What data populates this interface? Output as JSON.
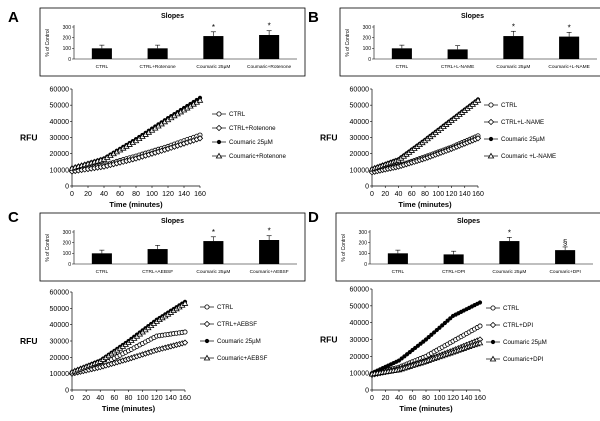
{
  "panels": [
    {
      "letter": "A",
      "bar_title": "Slopes",
      "bar_ylabel": "% of Control",
      "bar_yticks": [
        "0",
        "100",
        "200",
        "300"
      ],
      "bar_categories": [
        "CTRL",
        "CTRL+Rotenone",
        "Coumaric 25µM",
        "Coumaric+Rotenone"
      ],
      "bar_markers": [
        "",
        "",
        "*",
        "*"
      ],
      "line_ylabel": "RFU",
      "line_xlabel": "Time (minutes)",
      "line_yticks": [
        "0",
        "10000",
        "20000",
        "30000",
        "40000",
        "50000",
        "60000"
      ],
      "line_xticks": [
        "0",
        "20",
        "40",
        "60",
        "80",
        "100",
        "120",
        "140",
        "160"
      ],
      "legend": [
        "CTRL",
        "CTRL+Rotenone",
        "Coumaric 25µM",
        "Coumaric+Rotenone"
      ]
    },
    {
      "letter": "B",
      "bar_title": "Slopes",
      "bar_ylabel": "% of Control",
      "bar_yticks": [
        "0",
        "100",
        "200",
        "300"
      ],
      "bar_categories": [
        "CTRL",
        "CTRL+L-NAME",
        "Coumaric 25µM",
        "Coumaric+L-NAME"
      ],
      "bar_markers": [
        "",
        "",
        "*",
        "*"
      ],
      "line_ylabel": "RFU",
      "line_xlabel": "Time (minutes)",
      "line_yticks": [
        "0",
        "10000",
        "20000",
        "30000",
        "40000",
        "50000",
        "60000"
      ],
      "line_xticks": [
        "0",
        "20",
        "40",
        "60",
        "80",
        "100",
        "120",
        "140",
        "160"
      ],
      "legend": [
        "CTRL",
        "CTRL+L-NAME",
        "Coumaric 25µM",
        "Coumaric +L-NAME"
      ]
    },
    {
      "letter": "C",
      "bar_title": "Slopes",
      "bar_ylabel": "% of Control",
      "bar_yticks": [
        "0",
        "100",
        "200",
        "300"
      ],
      "bar_categories": [
        "CTRL",
        "CTRL+AEBSF",
        "Coumaric 25µM",
        "Coumaric+AEBSF"
      ],
      "bar_markers": [
        "",
        "",
        "*",
        "*"
      ],
      "line_ylabel": "RFU",
      "line_xlabel": "Time (minutes)",
      "line_yticks": [
        "0",
        "10000",
        "20000",
        "30000",
        "40000",
        "50000",
        "60000"
      ],
      "line_xticks": [
        "0",
        "20",
        "40",
        "60",
        "80",
        "100",
        "120",
        "140",
        "160"
      ],
      "legend": [
        "CTRL",
        "CTRL+AEBSF",
        "Coumaric 25µM",
        "Coumaric+AEBSF"
      ]
    },
    {
      "letter": "D",
      "bar_title": "Slopes",
      "bar_ylabel": "% of Control",
      "bar_yticks": [
        "0",
        "100",
        "200",
        "300"
      ],
      "bar_categories": [
        "CTRL",
        "CTRL+DPI",
        "Coumaric 25µM",
        "Coumaric+DPI"
      ],
      "bar_markers": [
        "",
        "",
        "*",
        "§"
      ],
      "line_ylabel": "RFU",
      "line_xlabel": "Time (minutes)",
      "line_yticks": [
        "0",
        "10000",
        "20000",
        "30000",
        "40000",
        "50000",
        "60000"
      ],
      "line_xticks": [
        "0",
        "20",
        "40",
        "60",
        "80",
        "100",
        "120",
        "140",
        "160"
      ],
      "legend": [
        "CTRL",
        "CTRL+DPI",
        "Coumaric 25µM",
        "Coumaric+DPI"
      ]
    }
  ],
  "chart_data": [
    {
      "panel": "A",
      "type": "bar",
      "title": "Slopes",
      "ylabel": "% of Control",
      "ylim": [
        0,
        300
      ],
      "categories": [
        "CTRL",
        "CTRL+Rotenone",
        "Coumaric 25µM",
        "Coumaric+Rotenone"
      ],
      "values": [
        100,
        100,
        215,
        225
      ],
      "errors": [
        30,
        30,
        40,
        40
      ]
    },
    {
      "panel": "A",
      "type": "line",
      "xlabel": "Time (minutes)",
      "ylabel": "RFU",
      "xlim": [
        0,
        160
      ],
      "ylim": [
        0,
        60000
      ],
      "x": [
        0,
        40,
        80,
        120,
        160
      ],
      "series": [
        {
          "name": "CTRL",
          "marker": "open-circle",
          "values": [
            10000,
            13000,
            18500,
            24500,
            31500
          ]
        },
        {
          "name": "CTRL+Rotenone",
          "marker": "open-diamond",
          "values": [
            9000,
            12000,
            17000,
            23000,
            29500
          ]
        },
        {
          "name": "Coumaric 25µM",
          "marker": "filled-circle",
          "values": [
            11000,
            17000,
            29000,
            42000,
            54500
          ]
        },
        {
          "name": "Coumaric+Rotenone",
          "marker": "open-triangle",
          "values": [
            11000,
            16500,
            28000,
            41000,
            53000
          ]
        }
      ]
    },
    {
      "panel": "B",
      "type": "bar",
      "title": "Slopes",
      "ylabel": "% of Control",
      "ylim": [
        0,
        300
      ],
      "categories": [
        "CTRL",
        "CTRL+L-NAME",
        "Coumaric 25µM",
        "Coumaric+L-NAME"
      ],
      "values": [
        100,
        90,
        215,
        210
      ],
      "errors": [
        30,
        35,
        45,
        40
      ]
    },
    {
      "panel": "B",
      "type": "line",
      "xlabel": "Time (minutes)",
      "ylabel": "RFU",
      "xlim": [
        0,
        160
      ],
      "ylim": [
        0,
        60000
      ],
      "x": [
        0,
        40,
        80,
        120,
        160
      ],
      "series": [
        {
          "name": "CTRL",
          "marker": "open-circle",
          "values": [
            9000,
            12500,
            18000,
            24000,
            31000
          ]
        },
        {
          "name": "CTRL+L-NAME",
          "marker": "open-diamond",
          "values": [
            8500,
            12000,
            17000,
            23000,
            29500
          ]
        },
        {
          "name": "Coumaric 25µM",
          "marker": "filled-circle",
          "values": [
            10500,
            16500,
            28500,
            41000,
            53500
          ]
        },
        {
          "name": "Coumaric +L-NAME",
          "marker": "open-triangle",
          "values": [
            10500,
            16000,
            28000,
            40500,
            53000
          ]
        }
      ]
    },
    {
      "panel": "C",
      "type": "bar",
      "title": "Slopes",
      "ylabel": "% of Control",
      "ylim": [
        0,
        300
      ],
      "categories": [
        "CTRL",
        "CTRL+AEBSF",
        "Coumaric 25µM",
        "Coumaric+AEBSF"
      ],
      "values": [
        100,
        140,
        215,
        225
      ],
      "errors": [
        30,
        35,
        40,
        40
      ]
    },
    {
      "panel": "C",
      "type": "line",
      "xlabel": "Time (minutes)",
      "ylabel": "RFU",
      "xlim": [
        0,
        160
      ],
      "ylim": [
        0,
        60000
      ],
      "x": [
        0,
        40,
        80,
        120,
        160
      ],
      "series": [
        {
          "name": "CTRL",
          "marker": "open-circle",
          "values": [
            10500,
            15000,
            24000,
            33000,
            35500
          ]
        },
        {
          "name": "CTRL+AEBSF",
          "marker": "open-diamond",
          "values": [
            10000,
            14000,
            19000,
            24500,
            29000
          ]
        },
        {
          "name": "Coumaric 25µM",
          "marker": "filled-circle",
          "values": [
            11000,
            18000,
            30000,
            43000,
            54000
          ]
        },
        {
          "name": "Coumaric+AEBSF",
          "marker": "open-triangle",
          "values": [
            11000,
            17500,
            29000,
            42000,
            53000
          ]
        }
      ]
    },
    {
      "panel": "D",
      "type": "bar",
      "title": "Slopes",
      "ylabel": "% of Control",
      "ylim": [
        0,
        300
      ],
      "categories": [
        "CTRL",
        "CTRL+DPI",
        "Coumaric 25µM",
        "Coumaric+DPI"
      ],
      "values": [
        100,
        90,
        215,
        130
      ],
      "errors": [
        30,
        30,
        35,
        30
      ]
    },
    {
      "panel": "D",
      "type": "line",
      "xlabel": "Time (minutes)",
      "ylabel": "RFU",
      "xlim": [
        0,
        160
      ],
      "ylim": [
        0,
        60000
      ],
      "x": [
        0,
        40,
        80,
        120,
        160
      ],
      "series": [
        {
          "name": "CTRL",
          "marker": "open-circle",
          "values": [
            9500,
            13500,
            20000,
            29000,
            38000
          ]
        },
        {
          "name": "CTRL+DPI",
          "marker": "open-diamond",
          "values": [
            9000,
            12500,
            17500,
            23500,
            30000
          ]
        },
        {
          "name": "Coumaric 25µM",
          "marker": "filled-circle",
          "values": [
            10000,
            17500,
            30000,
            44000,
            52000
          ]
        },
        {
          "name": "Coumaric+DPI",
          "marker": "open-triangle",
          "values": [
            9500,
            12000,
            17000,
            22500,
            28000
          ]
        }
      ]
    }
  ]
}
